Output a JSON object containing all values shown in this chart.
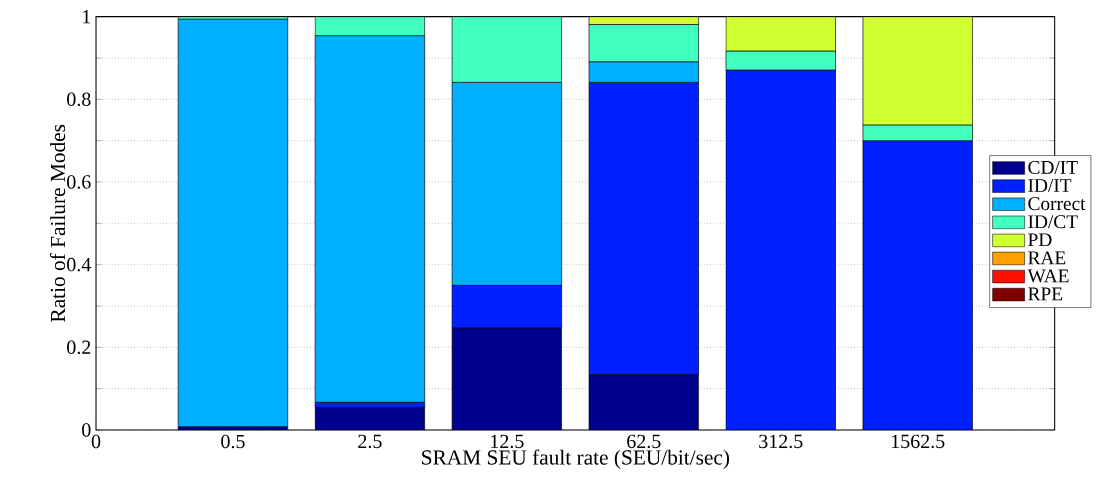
{
  "chart_data": {
    "type": "bar",
    "stacked": true,
    "xlabel": "SRAM SEU fault rate (SEU/bit/sec)",
    "ylabel": "Ratio of Failure Modes",
    "categories": [
      "0",
      "0.5",
      "2.5",
      "12.5",
      "62.5",
      "312.5",
      "1562.5",
      null
    ],
    "ylim": [
      0,
      1
    ],
    "yticks": [
      0,
      {
        "value": 0.1,
        "label": null
      },
      0.2,
      {
        "value": 0.3,
        "label": null
      },
      0.4,
      {
        "value": 0.5,
        "label": null
      },
      0.6,
      {
        "value": 0.7,
        "label": null
      },
      0.8,
      {
        "value": 0.9,
        "label": null
      },
      1
    ],
    "grid": "y",
    "legend": "right",
    "series": [
      {
        "name": "CD/IT",
        "color": "#00008f",
        "values": [
          null,
          0.008,
          0.055,
          0.247,
          0.134,
          0,
          0,
          null
        ]
      },
      {
        "name": "ID/IT",
        "color": "#0020ff",
        "values": [
          null,
          0,
          0.012,
          0.103,
          0.707,
          0.871,
          0.7,
          null
        ]
      },
      {
        "name": "Correct",
        "color": "#00afff",
        "values": [
          null,
          0.986,
          0.887,
          0.491,
          0.05,
          0,
          0,
          null
        ]
      },
      {
        "name": "ID/CT",
        "color": "#40ffbf",
        "values": [
          null,
          0.006,
          0.046,
          0.159,
          0.09,
          0.046,
          0.038,
          null
        ]
      },
      {
        "name": "PD",
        "color": "#cfff30",
        "values": [
          null,
          0,
          0,
          0,
          0.019,
          0.083,
          0.262,
          null
        ]
      },
      {
        "name": "RAE",
        "color": "#ff9f00",
        "values": [
          null,
          0,
          0,
          0,
          0,
          0,
          0,
          null
        ]
      },
      {
        "name": "WAE",
        "color": "#ff1000",
        "values": [
          null,
          0,
          0,
          0,
          0,
          0,
          0,
          null
        ]
      },
      {
        "name": "RPE",
        "color": "#800000",
        "values": [
          null,
          0,
          0,
          0,
          0,
          0,
          0,
          null
        ]
      }
    ]
  }
}
